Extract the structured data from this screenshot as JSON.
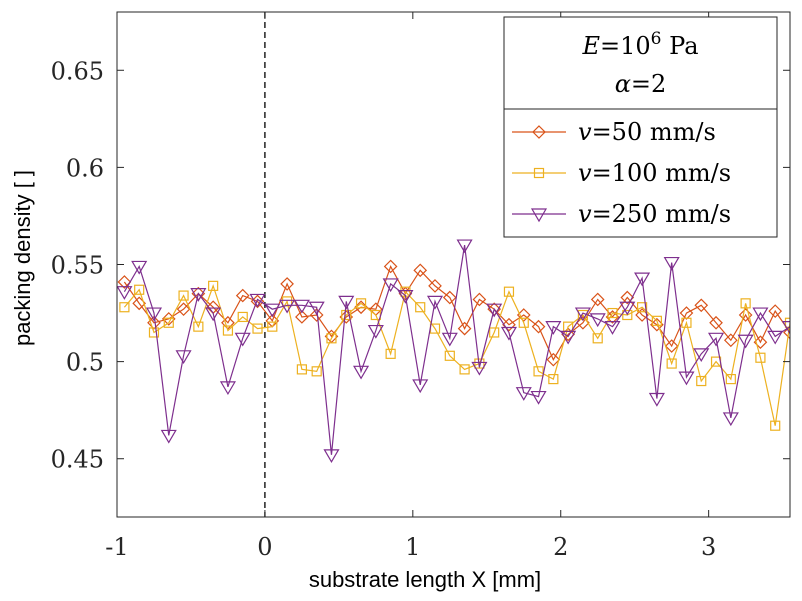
{
  "chart_data": {
    "type": "line",
    "xlabel": "substrate length X [mm]",
    "ylabel": "packing density [ ]",
    "xlim": [
      -1,
      3.55
    ],
    "ylim": [
      0.42,
      0.68
    ],
    "xticks": [
      -1,
      0,
      1,
      2,
      3
    ],
    "xtick_labels": [
      "-1",
      "0",
      "1",
      "2",
      "3"
    ],
    "yticks": [
      0.45,
      0.5,
      0.55,
      0.6,
      0.65
    ],
    "ytick_labels": [
      "0.45",
      "0.5",
      "0.55",
      "0.6",
      "0.65"
    ],
    "reference_line_x": 0,
    "legend_title": {
      "line1": {
        "var": "E",
        "eq": "=10",
        "sup": "6",
        "unit": " Pa"
      },
      "line2": {
        "var": "α",
        "eq": "=2"
      }
    },
    "legend_position": "top-right",
    "x": [
      -0.95,
      -0.85,
      -0.75,
      -0.65,
      -0.55,
      -0.45,
      -0.35,
      -0.25,
      -0.15,
      -0.05,
      0.05,
      0.15,
      0.25,
      0.35,
      0.45,
      0.55,
      0.65,
      0.75,
      0.85,
      0.95,
      1.05,
      1.15,
      1.25,
      1.35,
      1.45,
      1.55,
      1.65,
      1.75,
      1.85,
      1.95,
      2.05,
      2.15,
      2.25,
      2.35,
      2.45,
      2.55,
      2.65,
      2.75,
      2.85,
      2.95,
      3.05,
      3.15,
      3.25,
      3.35,
      3.45,
      3.55
    ],
    "series": [
      {
        "name": "v=50 mm/s",
        "label_var": "v",
        "label_rest": "=50 mm/s",
        "color": "#D95319",
        "marker": "diamond",
        "values": [
          0.541,
          0.53,
          0.52,
          0.522,
          0.527,
          0.535,
          0.528,
          0.52,
          0.534,
          0.531,
          0.521,
          0.54,
          0.523,
          0.524,
          0.513,
          0.523,
          0.528,
          0.527,
          0.549,
          0.535,
          0.547,
          0.539,
          0.533,
          0.517,
          0.532,
          0.527,
          0.519,
          0.524,
          0.518,
          0.501,
          0.514,
          0.52,
          0.532,
          0.523,
          0.533,
          0.524,
          0.519,
          0.508,
          0.525,
          0.529,
          0.52,
          0.511,
          0.524,
          0.51,
          0.526,
          0.515
        ]
      },
      {
        "name": "v=100 mm/s",
        "label_var": "v",
        "label_rest": "=100 mm/s",
        "color": "#EDB120",
        "marker": "square",
        "values": [
          0.528,
          0.537,
          0.515,
          0.52,
          0.534,
          0.518,
          0.539,
          0.516,
          0.523,
          0.517,
          0.518,
          0.531,
          0.496,
          0.495,
          0.512,
          0.524,
          0.53,
          0.524,
          0.504,
          0.536,
          0.528,
          0.517,
          0.503,
          0.496,
          0.499,
          0.515,
          0.536,
          0.52,
          0.495,
          0.491,
          0.518,
          0.524,
          0.512,
          0.525,
          0.524,
          0.528,
          0.521,
          0.499,
          0.52,
          0.49,
          0.5,
          0.491,
          0.53,
          0.502,
          0.467,
          0.52
        ]
      },
      {
        "name": "v=250 mm/s",
        "label_var": "v",
        "label_rest": "=250 mm/s",
        "color": "#7E2F8E",
        "marker": "triangle-down",
        "values": [
          0.536,
          0.549,
          0.525,
          0.462,
          0.503,
          0.535,
          0.525,
          0.487,
          0.512,
          0.532,
          0.527,
          0.529,
          0.529,
          0.528,
          0.452,
          0.531,
          0.495,
          0.516,
          0.54,
          0.534,
          0.488,
          0.531,
          0.512,
          0.56,
          0.497,
          0.527,
          0.515,
          0.484,
          0.482,
          0.518,
          0.513,
          0.525,
          0.522,
          0.518,
          0.528,
          0.543,
          0.481,
          0.551,
          0.492,
          0.504,
          0.512,
          0.471,
          0.511,
          0.525,
          0.513,
          0.518
        ]
      }
    ]
  }
}
